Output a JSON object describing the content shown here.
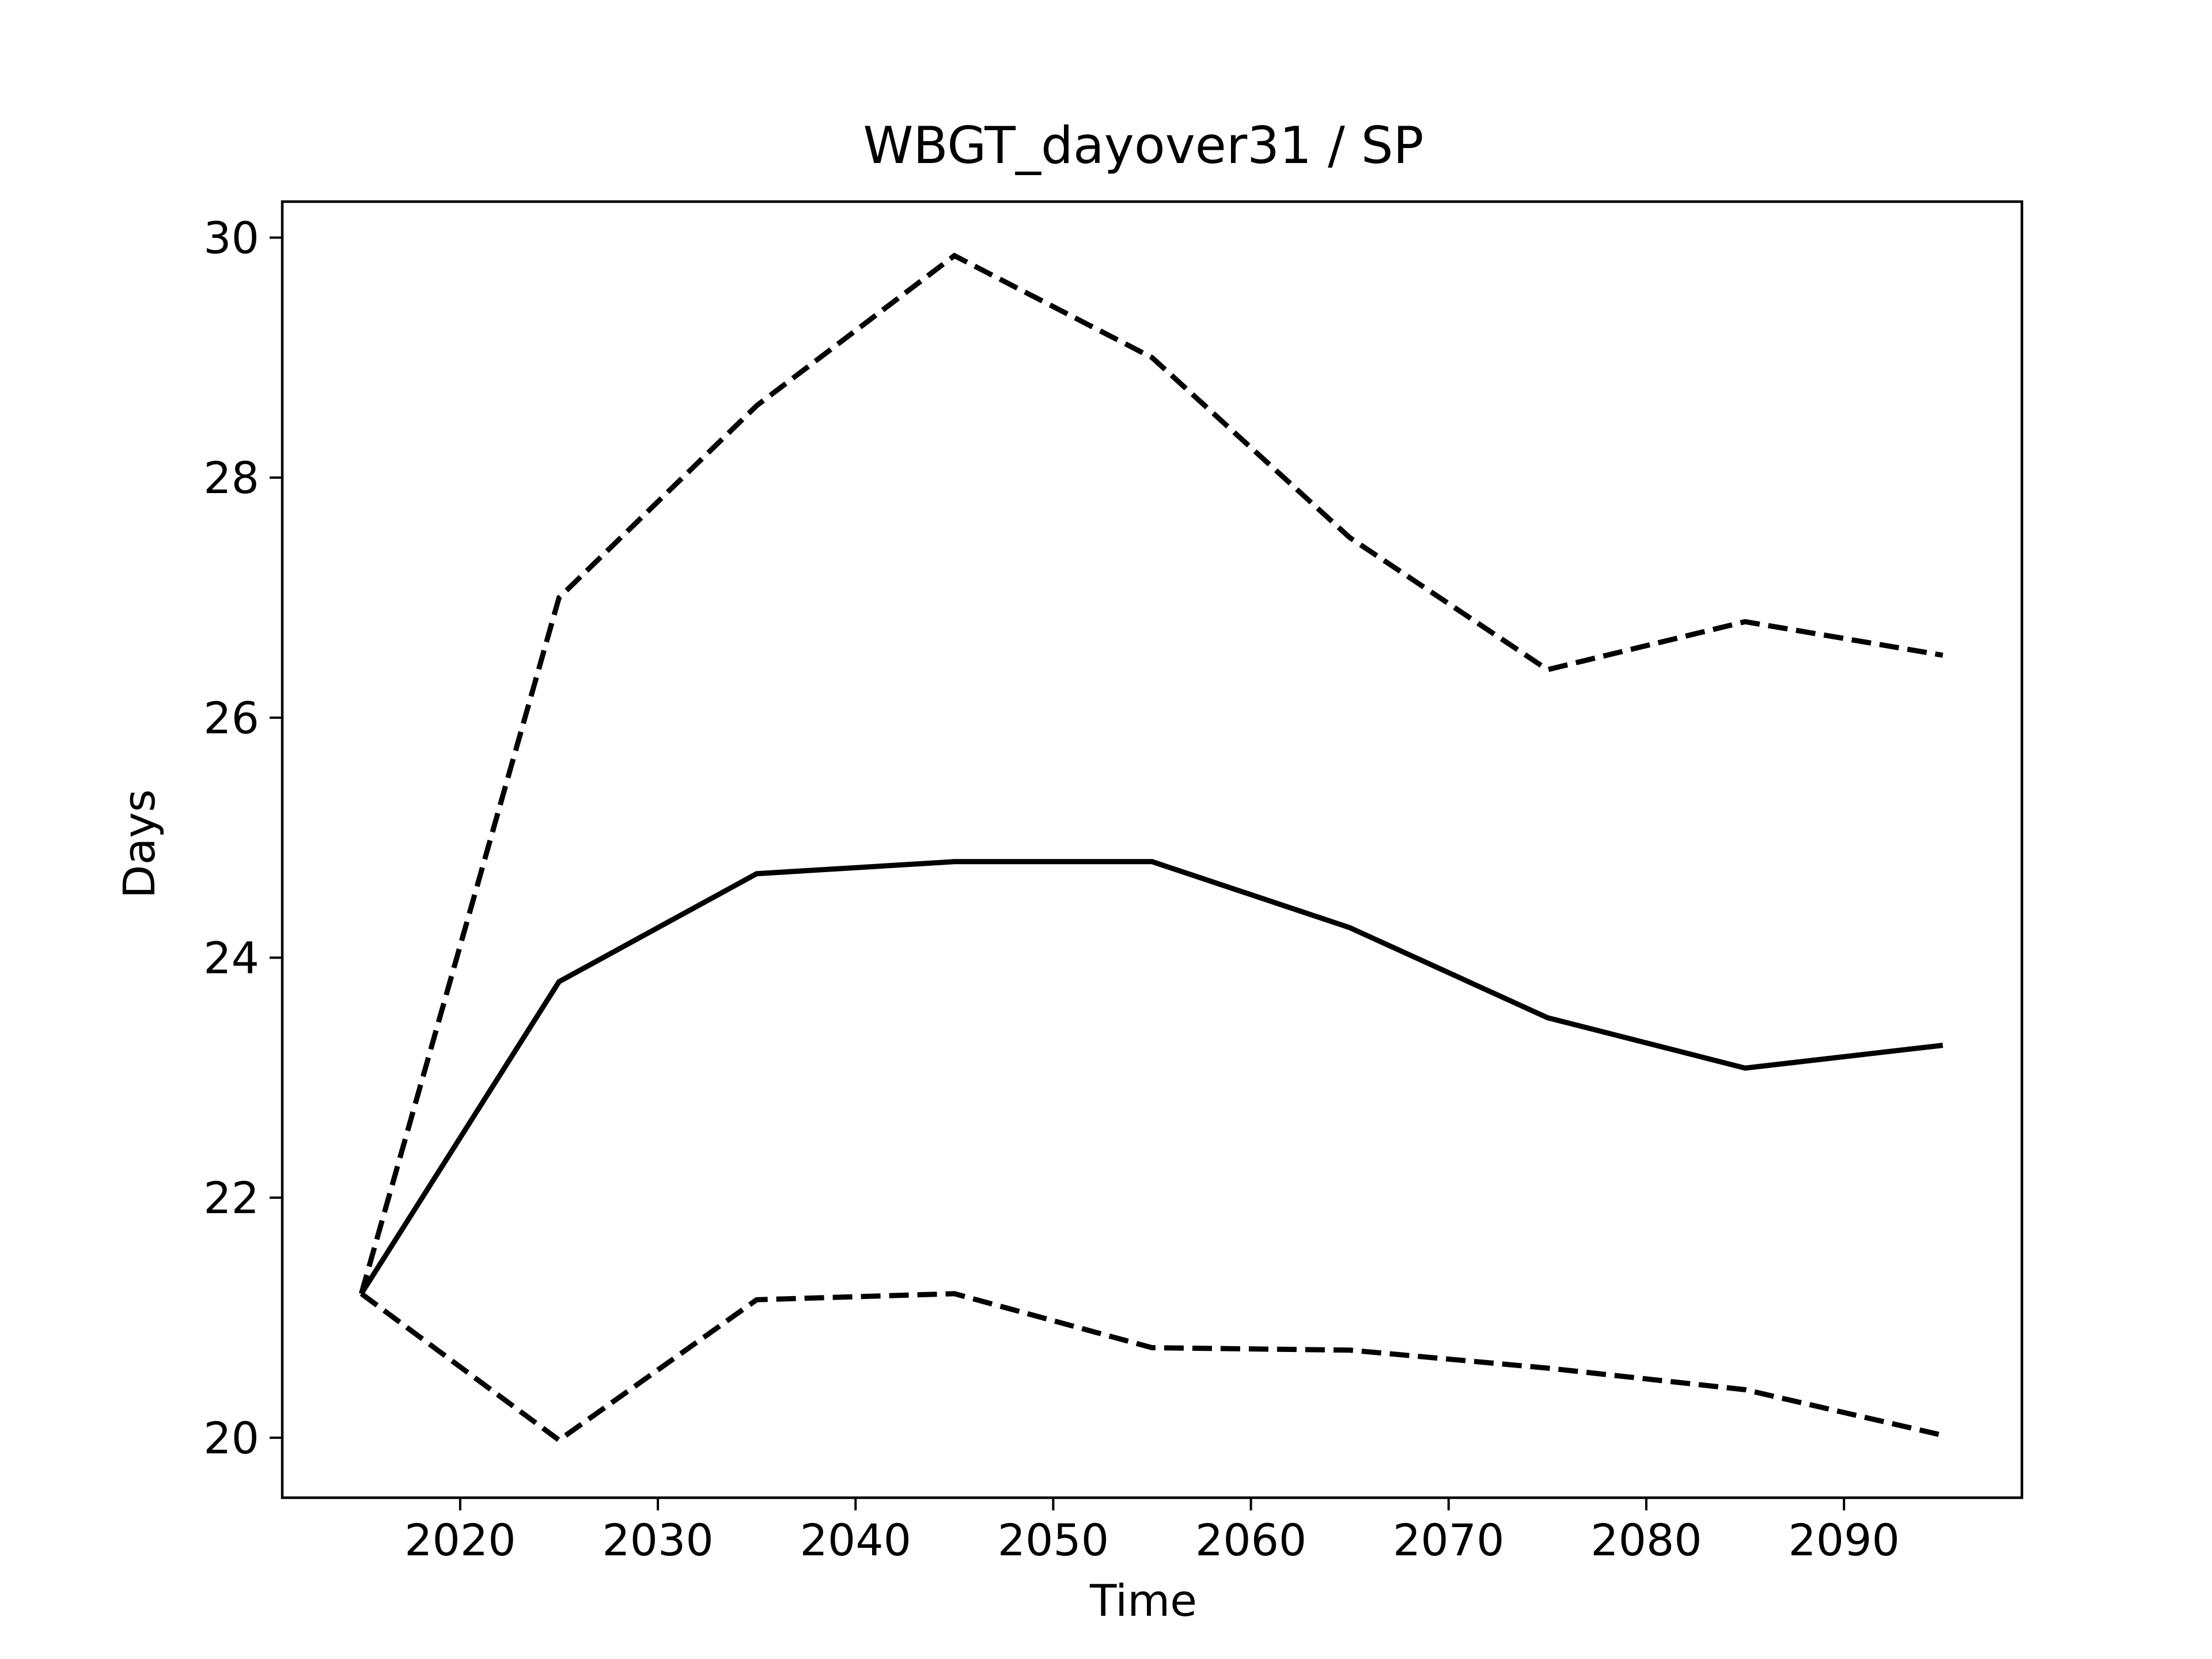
{
  "chart_data": {
    "type": "line",
    "title": "WBGT_dayover31 / SP",
    "xlabel": "Time",
    "ylabel": "Days",
    "x": [
      2015,
      2025,
      2035,
      2045,
      2055,
      2065,
      2075,
      2085,
      2095
    ],
    "xlim": [
      2011,
      2099
    ],
    "ylim": [
      19.5,
      30.3
    ],
    "xticks": [
      2020,
      2030,
      2040,
      2050,
      2060,
      2070,
      2080,
      2090
    ],
    "yticks": [
      20,
      22,
      24,
      26,
      28,
      30
    ],
    "grid": false,
    "legend": "none",
    "series": [
      {
        "style": "solid",
        "color": "#000000",
        "values": [
          21.2,
          23.8,
          24.7,
          24.8,
          24.8,
          24.25,
          23.5,
          23.08,
          23.27
        ]
      },
      {
        "style": "dashed",
        "color": "#000000",
        "values": [
          21.2,
          27.0,
          28.6,
          29.85,
          29.0,
          27.5,
          26.4,
          26.8,
          26.52
        ]
      },
      {
        "style": "dashed",
        "color": "#000000",
        "values": [
          21.2,
          19.98,
          21.15,
          21.2,
          20.75,
          20.73,
          20.58,
          20.4,
          20.02
        ]
      }
    ]
  }
}
